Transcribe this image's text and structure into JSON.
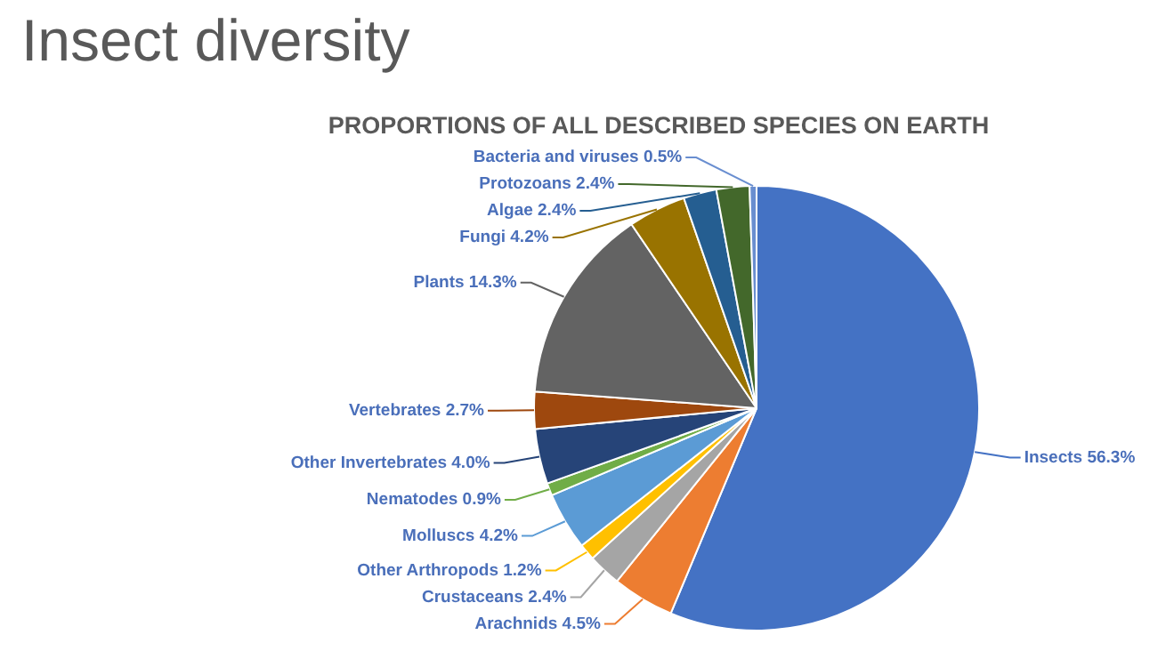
{
  "chart_data": {
    "type": "pie",
    "title": "Insect diversity",
    "subtitle": "PROPORTIONS OF ALL DESCRIBED SPECIES ON EARTH",
    "categories": [
      "Insects",
      "Arachnids",
      "Crustaceans",
      "Other Arthropods",
      "Molluscs",
      "Nematodes",
      "Other Invertebrates",
      "Vertebrates",
      "Plants",
      "Fungi",
      "Algae",
      "Protozoans",
      "Bacteria and viruses"
    ],
    "values": [
      56.3,
      4.5,
      2.4,
      1.2,
      4.2,
      0.9,
      4.0,
      2.7,
      14.3,
      4.2,
      2.4,
      2.4,
      0.5
    ],
    "value_labels": [
      "56.3%",
      "4.5%",
      "2.4%",
      "1.2%",
      "4.2%",
      "0.9%",
      "4.0%",
      "2.7%",
      "14.3%",
      "4.2%",
      "2.4%",
      "2.4%",
      "0.5%"
    ],
    "colors": [
      "#4472c4",
      "#ed7d31",
      "#a5a5a5",
      "#ffc000",
      "#5b9bd5",
      "#70ad47",
      "#264478",
      "#9e480e",
      "#636363",
      "#997300",
      "#255e91",
      "#43682b",
      "#698ed0"
    ]
  }
}
